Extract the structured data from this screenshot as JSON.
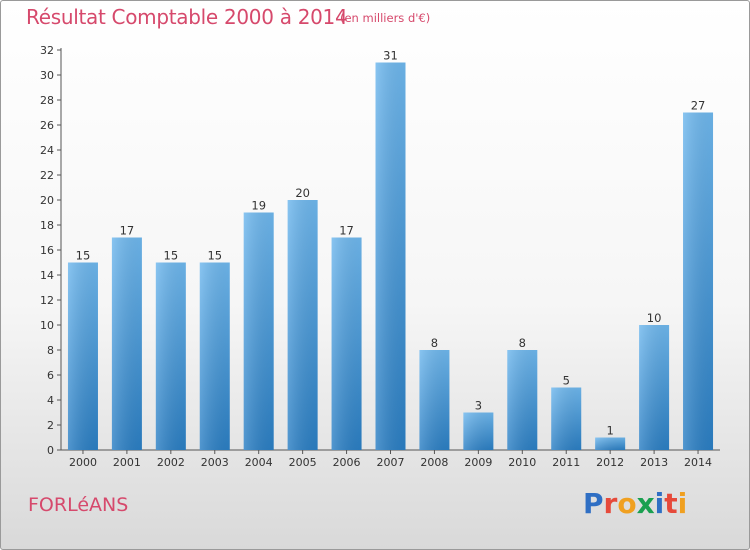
{
  "chart_data": {
    "type": "bar",
    "title": "Résultat Comptable 2000 à 2014",
    "subtitle": "(en milliers d'€)",
    "categories": [
      "2000",
      "2001",
      "2002",
      "2003",
      "2004",
      "2005",
      "2006",
      "2007",
      "2008",
      "2009",
      "2010",
      "2011",
      "2012",
      "2013",
      "2014"
    ],
    "values": [
      15,
      17,
      15,
      15,
      19,
      20,
      17,
      31,
      8,
      3,
      8,
      5,
      1,
      10,
      27
    ],
    "ylim": [
      0,
      32
    ],
    "yticks": [
      0,
      2,
      4,
      6,
      8,
      10,
      12,
      14,
      16,
      18,
      20,
      22,
      24,
      26,
      28,
      30,
      32
    ],
    "xlabel": "",
    "ylabel": "",
    "grid": false,
    "bar_color": "#4a9fe0",
    "bar_color_top": "#6fb8ee",
    "bar_color_bottom": "#2b7fc4"
  },
  "commune": "FORLéANS",
  "brand": {
    "letters": [
      "P",
      "r",
      "o",
      "x",
      "i",
      "t",
      "i"
    ],
    "colors": [
      "#2f6fc4",
      "#e64a3b",
      "#f0a020",
      "#1aa050",
      "#2f6fc4",
      "#e64a3b",
      "#f0a020"
    ]
  }
}
